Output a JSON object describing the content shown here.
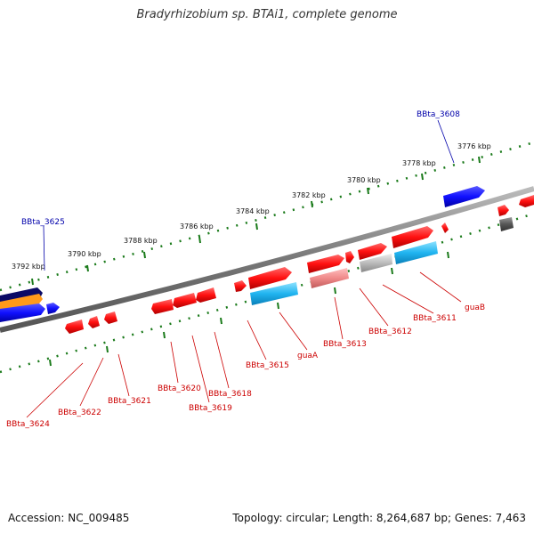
{
  "title": "Bradyrhizobium sp. BTAi1, complete genome",
  "footer": {
    "accession": "Accession: NC_009485",
    "summary": "Topology: circular; Length: 8,264,687 bp; Genes: 7,463"
  },
  "colors": {
    "backbone": "#888888",
    "tick": "#1a7a1a",
    "red_gene": "#ff1a1a",
    "blue_gene": "#1a1aff",
    "cyan_gene": "#22b8f0",
    "navy_gene": "#0a0a66",
    "orange_gene": "#ff9a1a",
    "pink_gene": "#f08a8a",
    "gray_gene": "#bbbbbb",
    "dark_gene": "#666666",
    "label_red": "#cc0000",
    "label_blue": "#0000aa"
  },
  "scale_labels": [
    "3776 kbp",
    "3778 kbp",
    "3780 kbp",
    "3782 kbp",
    "3784 kbp",
    "3786 kbp",
    "3788 kbp",
    "3790 kbp",
    "3792 kbp"
  ],
  "gene_labels_top": [
    "BBta_3608",
    "BBta_3625"
  ],
  "gene_labels_bottom": [
    "guaB",
    "BBta_3611",
    "BBta_3612",
    "BBta_3613",
    "guaA",
    "BBta_3615",
    "BBta_3618",
    "BBta_3619",
    "BBta_3620",
    "BBta_3621",
    "BBta_3622",
    "BBta_3624"
  ]
}
